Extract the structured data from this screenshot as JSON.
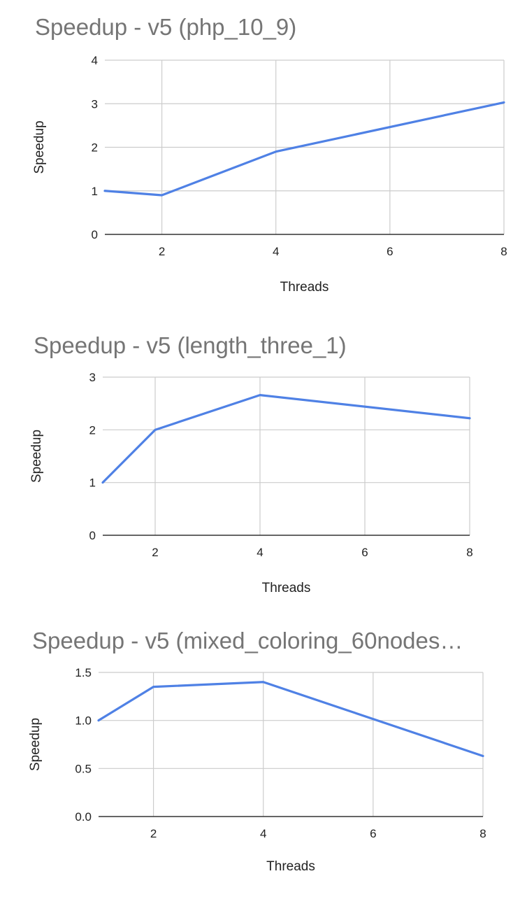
{
  "chart_data": [
    {
      "type": "line",
      "title": "Speedup - v5 (php_10_9)",
      "xlabel": "Threads",
      "ylabel": "Speedup",
      "x": [
        1,
        2,
        4,
        8
      ],
      "series": [
        {
          "values": [
            1.0,
            0.9,
            1.9,
            3.03
          ]
        }
      ],
      "xlim": [
        1,
        8
      ],
      "ylim": [
        0,
        4
      ],
      "xticks": [
        "2",
        "4",
        "6",
        "8"
      ],
      "yticks": [
        "0",
        "1",
        "2",
        "3",
        "4"
      ],
      "grid": true,
      "color": "#4f81e5"
    },
    {
      "type": "line",
      "title": "Speedup - v5 (length_three_1)",
      "xlabel": "Threads",
      "ylabel": "Speedup",
      "x": [
        1,
        2,
        4,
        8
      ],
      "series": [
        {
          "values": [
            1.0,
            2.0,
            2.66,
            2.22
          ]
        }
      ],
      "xlim": [
        1,
        8
      ],
      "ylim": [
        0,
        3
      ],
      "xticks": [
        "2",
        "4",
        "6",
        "8"
      ],
      "yticks": [
        "0",
        "1",
        "2",
        "3"
      ],
      "grid": true,
      "color": "#4f81e5"
    },
    {
      "type": "line",
      "title": "Speedup - v5 (mixed_coloring_60nodes…",
      "xlabel": "Threads",
      "ylabel": "Speedup",
      "x": [
        1,
        2,
        4,
        8
      ],
      "series": [
        {
          "values": [
            1.0,
            1.35,
            1.4,
            0.63
          ]
        }
      ],
      "xlim": [
        1,
        8
      ],
      "ylim": [
        0,
        1.5
      ],
      "xticks": [
        "2",
        "4",
        "6",
        "8"
      ],
      "yticks": [
        "0.0",
        "0.5",
        "1.0",
        "1.5"
      ],
      "grid": true,
      "color": "#4f81e5"
    }
  ]
}
